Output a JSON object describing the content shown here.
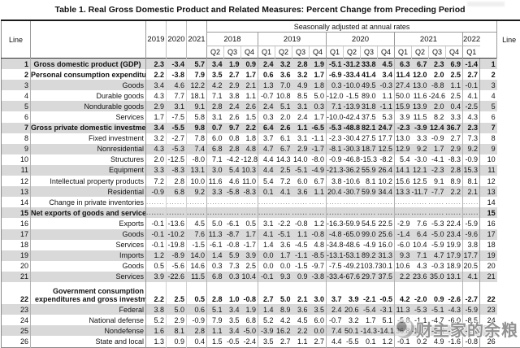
{
  "title": "Table 1. Real Gross Domestic Product and Related Measures: Percent Change from Preceding Period",
  "header": {
    "line_label": "Line",
    "seasonally_label": "Seasonally adjusted at annual rates",
    "annual_years": [
      "2019",
      "2020",
      "2021"
    ],
    "year_groups": [
      {
        "year": "2018",
        "quarters": [
          "Q2",
          "Q3",
          "Q4"
        ]
      },
      {
        "year": "2019",
        "quarters": [
          "Q1",
          "Q2",
          "Q3",
          "Q4"
        ]
      },
      {
        "year": "2020",
        "quarters": [
          "Q1",
          "Q2",
          "Q3",
          "Q4"
        ]
      },
      {
        "year": "2021",
        "quarters": [
          "Q1",
          "Q2",
          "Q3",
          "Q4"
        ]
      },
      {
        "year": "2022",
        "quarters": [
          "Q1"
        ]
      }
    ]
  },
  "table": {
    "rows": [
      {
        "line": 1,
        "label": "Gross domestic product (GDP)",
        "indent": 0,
        "bold": true,
        "center": true,
        "values": [
          "2.3",
          "-3.4",
          "5.7",
          "3.4",
          "1.9",
          "0.9",
          "2.4",
          "3.2",
          "2.8",
          "1.9",
          "-5.1",
          "-31.2",
          "33.8",
          "4.5",
          "6.3",
          "6.7",
          "2.3",
          "6.9",
          "-1.4"
        ]
      },
      {
        "line": 2,
        "label": "Personal consumption expenditures",
        "indent": 0,
        "bold": true,
        "values": [
          "2.2",
          "-3.8",
          "7.9",
          "3.5",
          "2.7",
          "1.7",
          "0.6",
          "3.6",
          "3.2",
          "1.7",
          "-6.9",
          "-33.4",
          "41.4",
          "3.4",
          "11.4",
          "12.0",
          "2.0",
          "2.5",
          "2.7"
        ]
      },
      {
        "line": 3,
        "label": "Goods",
        "indent": 1,
        "values": [
          "3.4",
          "4.6",
          "12.2",
          "4.2",
          "2.9",
          "2.1",
          "1.3",
          "7.0",
          "4.9",
          "1.8",
          "0.3",
          "-10.0",
          "49.5",
          "-0.3",
          "27.4",
          "13.0",
          "-8.8",
          "1.1",
          "-0.1"
        ]
      },
      {
        "line": 4,
        "label": "Durable goods",
        "indent": 2,
        "values": [
          "4.3",
          "7.7",
          "18.1",
          "7.1",
          "3.8",
          "1.1",
          "-0.7",
          "10.8",
          "8.5",
          "5.0",
          "-12.0",
          "-1.5",
          "89.0",
          "1.1",
          "50.0",
          "11.6",
          "-24.6",
          "2.5",
          "4.1"
        ]
      },
      {
        "line": 5,
        "label": "Nondurable goods",
        "indent": 2,
        "values": [
          "2.9",
          "3.1",
          "9.1",
          "2.8",
          "2.4",
          "2.6",
          "2.4",
          "5.1",
          "3.1",
          "0.3",
          "7.1",
          "-13.9",
          "31.8",
          "-1.1",
          "15.9",
          "13.9",
          "2.0",
          "0.4",
          "-2.5"
        ]
      },
      {
        "line": 6,
        "label": "Services",
        "indent": 1,
        "values": [
          "1.7",
          "-7.5",
          "5.8",
          "3.1",
          "2.6",
          "1.5",
          "0.3",
          "2.0",
          "2.4",
          "1.7",
          "-10.0",
          "-42.4",
          "37.5",
          "5.3",
          "3.9",
          "11.5",
          "8.2",
          "3.3",
          "4.3"
        ]
      },
      {
        "line": 7,
        "label": "Gross private domestic investment",
        "indent": 0,
        "bold": true,
        "values": [
          "3.4",
          "-5.5",
          "9.8",
          "0.7",
          "9.7",
          "2.2",
          "6.4",
          "2.6",
          "1.1",
          "-6.5",
          "-5.3",
          "-48.8",
          "82.1",
          "24.7",
          "-2.3",
          "-3.9",
          "12.4",
          "36.7",
          "2.3"
        ]
      },
      {
        "line": 8,
        "label": "Fixed investment",
        "indent": 1,
        "values": [
          "3.2",
          "-2.7",
          "7.8",
          "6.0",
          "0.8",
          "1.8",
          "3.7",
          "6.1",
          "3.1",
          "-1.1",
          "-2.3",
          "-30.4",
          "27.5",
          "17.7",
          "13.0",
          "3.3",
          "-0.9",
          "2.7",
          "7.3"
        ]
      },
      {
        "line": 9,
        "label": "Nonresidential",
        "indent": 2,
        "values": [
          "4.3",
          "-5.3",
          "7.4",
          "6.8",
          "2.8",
          "4.8",
          "4.7",
          "6.7",
          "2.9",
          "-1.7",
          "-8.1",
          "-30.3",
          "18.7",
          "12.5",
          "12.9",
          "9.2",
          "1.7",
          "2.9",
          "9.2"
        ]
      },
      {
        "line": 10,
        "label": "Structures",
        "indent": 3,
        "values": [
          "2.0",
          "-12.5",
          "-8.0",
          "7.1",
          "-4.2",
          "-12.8",
          "4.4",
          "14.3",
          "14.0",
          "-8.0",
          "-0.9",
          "-46.8",
          "-15.3",
          "-8.2",
          "5.4",
          "-3.0",
          "-4.1",
          "-8.3",
          "-0.9"
        ]
      },
      {
        "line": 11,
        "label": "Equipment",
        "indent": 3,
        "values": [
          "3.3",
          "-8.3",
          "13.1",
          "3.0",
          "5.4",
          "10.3",
          "4.4",
          "2.5",
          "-5.1",
          "-4.9",
          "-21.3",
          "-36.2",
          "55.9",
          "26.4",
          "14.1",
          "12.1",
          "-2.3",
          "2.8",
          "15.3"
        ]
      },
      {
        "line": 12,
        "label": "Intellectual property products",
        "indent": 3,
        "values": [
          "7.2",
          "2.8",
          "10.0",
          "11.6",
          "4.6",
          "11.0",
          "5.4",
          "7.2",
          "6.0",
          "6.7",
          "3.8",
          "-10.6",
          "8.1",
          "10.2",
          "15.6",
          "12.5",
          "9.1",
          "8.9",
          "8.1"
        ]
      },
      {
        "line": 13,
        "label": "Residential",
        "indent": 2,
        "values": [
          "-0.9",
          "6.8",
          "9.2",
          "3.3",
          "-5.8",
          "-8.3",
          "0.1",
          "4.1",
          "3.6",
          "1.1",
          "20.4",
          "-30.7",
          "59.9",
          "34.4",
          "13.3",
          "-11.7",
          "-7.7",
          "2.2",
          "2.1"
        ]
      },
      {
        "line": 14,
        "label": "Change in private inventories",
        "indent": 1,
        "dots": true,
        "values": []
      },
      {
        "line": 15,
        "label": "Net exports of goods and services",
        "indent": 0,
        "bold": true,
        "dots": true,
        "values": []
      },
      {
        "line": 16,
        "label": "Exports",
        "indent": 1,
        "values": [
          "-0.1",
          "-13.6",
          "4.5",
          "5.0",
          "-6.1",
          "0.5",
          "3.1",
          "-2.2",
          "-0.8",
          "1.2",
          "-16.3",
          "-59.9",
          "54.5",
          "22.5",
          "-2.9",
          "7.6",
          "-5.3",
          "22.4",
          "-5.9"
        ]
      },
      {
        "line": 17,
        "label": "Goods",
        "indent": 2,
        "values": [
          "-0.1",
          "-10.2",
          "7.6",
          "11.3",
          "-8.7",
          "1.7",
          "4.1",
          "-5.1",
          "1.1",
          "-0.8",
          "-4.8",
          "-65.0",
          "99.0",
          "25.6",
          "-1.4",
          "6.4",
          "-5.0",
          "23.4",
          "-9.6"
        ]
      },
      {
        "line": 18,
        "label": "Services",
        "indent": 2,
        "values": [
          "-0.1",
          "-19.8",
          "-1.5",
          "-6.1",
          "-0.8",
          "-1.7",
          "1.4",
          "3.6",
          "-4.5",
          "4.8",
          "-34.8",
          "-48.6",
          "-4.9",
          "16.0",
          "-6.0",
          "10.4",
          "-5.9",
          "19.9",
          "3.8"
        ]
      },
      {
        "line": 19,
        "label": "Imports",
        "indent": 1,
        "values": [
          "1.2",
          "-8.9",
          "14.0",
          "1.4",
          "5.9",
          "3.9",
          "0.0",
          "1.7",
          "-1.1",
          "-8.5",
          "-13.1",
          "-53.1",
          "89.2",
          "31.3",
          "9.3",
          "7.1",
          "4.7",
          "17.9",
          "17.7"
        ]
      },
      {
        "line": 20,
        "label": "Goods",
        "indent": 2,
        "values": [
          "0.5",
          "-5.6",
          "14.6",
          "0.3",
          "7.3",
          "2.5",
          "0.0",
          "0.0",
          "-1.5",
          "-9.7",
          "-7.5",
          "-49.2",
          "103.7",
          "30.1",
          "10.6",
          "4.3",
          "-0.3",
          "18.9",
          "20.5"
        ]
      },
      {
        "line": 21,
        "label": "Services",
        "indent": 2,
        "values": [
          "3.9",
          "-22.6",
          "11.5",
          "6.8",
          "0.3",
          "10.4",
          "-0.1",
          "9.3",
          "0.9",
          "-3.8",
          "-33.4",
          "-67.6",
          "29.7",
          "37.5",
          "2.2",
          "23.6",
          "35.0",
          "13.1",
          "4.1"
        ]
      },
      {
        "line": 22,
        "label": "Government consumption",
        "label2": "expenditures and gross investment",
        "indent": 0,
        "bold": true,
        "tall": true,
        "values": [
          "2.2",
          "2.5",
          "0.5",
          "2.8",
          "1.0",
          "-0.8",
          "2.7",
          "5.0",
          "2.1",
          "3.0",
          "3.7",
          "3.9",
          "-2.1",
          "-0.5",
          "4.2",
          "-2.0",
          "0.9",
          "-2.6",
          "-2.7"
        ]
      },
      {
        "line": 23,
        "label": "Federal",
        "indent": 1,
        "values": [
          "3.8",
          "5.0",
          "0.6",
          "5.1",
          "3.4",
          "1.9",
          "1.4",
          "8.9",
          "3.6",
          "3.5",
          "2.4",
          "20.6",
          "-5.4",
          "-3.1",
          "11.3",
          "-5.3",
          "-5.1",
          "-4.3",
          "-5.9"
        ]
      },
      {
        "line": 24,
        "label": "National defense",
        "indent": 2,
        "values": [
          "5.2",
          "2.9",
          "-0.9",
          "7.9",
          "3.5",
          "6.8",
          "5.2",
          "4.2",
          "4.5",
          "6.0",
          "-0.7",
          "3.2",
          "1.7",
          "5.1",
          "-5.8",
          "-1.1",
          "-4.7",
          "-6.0",
          "-8.5"
        ]
      },
      {
        "line": 25,
        "label": "Nondefense",
        "indent": 2,
        "values": [
          "1.6",
          "8.1",
          "2.8",
          "1.1",
          "3.4",
          "-5.0",
          "-3.9",
          "16.2",
          "2.2",
          "0.0",
          "7.4",
          "50.1",
          "-14.3",
          "-14.1",
          "36.8",
          "-10.7",
          "-5.5",
          "-2.0",
          "-2.2"
        ]
      },
      {
        "line": 26,
        "label": "State and local",
        "indent": 1,
        "values": [
          "1.3",
          "0.9",
          "0.4",
          "1.5",
          "-0.5",
          "-2.4",
          "3.5",
          "2.7",
          "1.1",
          "2.7",
          "4.4",
          "-5.5",
          "0.1",
          "1.2",
          "-0.1",
          "0.2",
          "4.9",
          "-1.6",
          "-0.8"
        ]
      }
    ]
  },
  "watermark": {
    "text": "财主家的余粮",
    "logo": "circular-emblem"
  },
  "colors": {
    "row_shading": "#d9d9d9",
    "border_dark": "#1a1a1a",
    "border_gray": "#9a9a9a",
    "watermark_gray": "#696969"
  }
}
